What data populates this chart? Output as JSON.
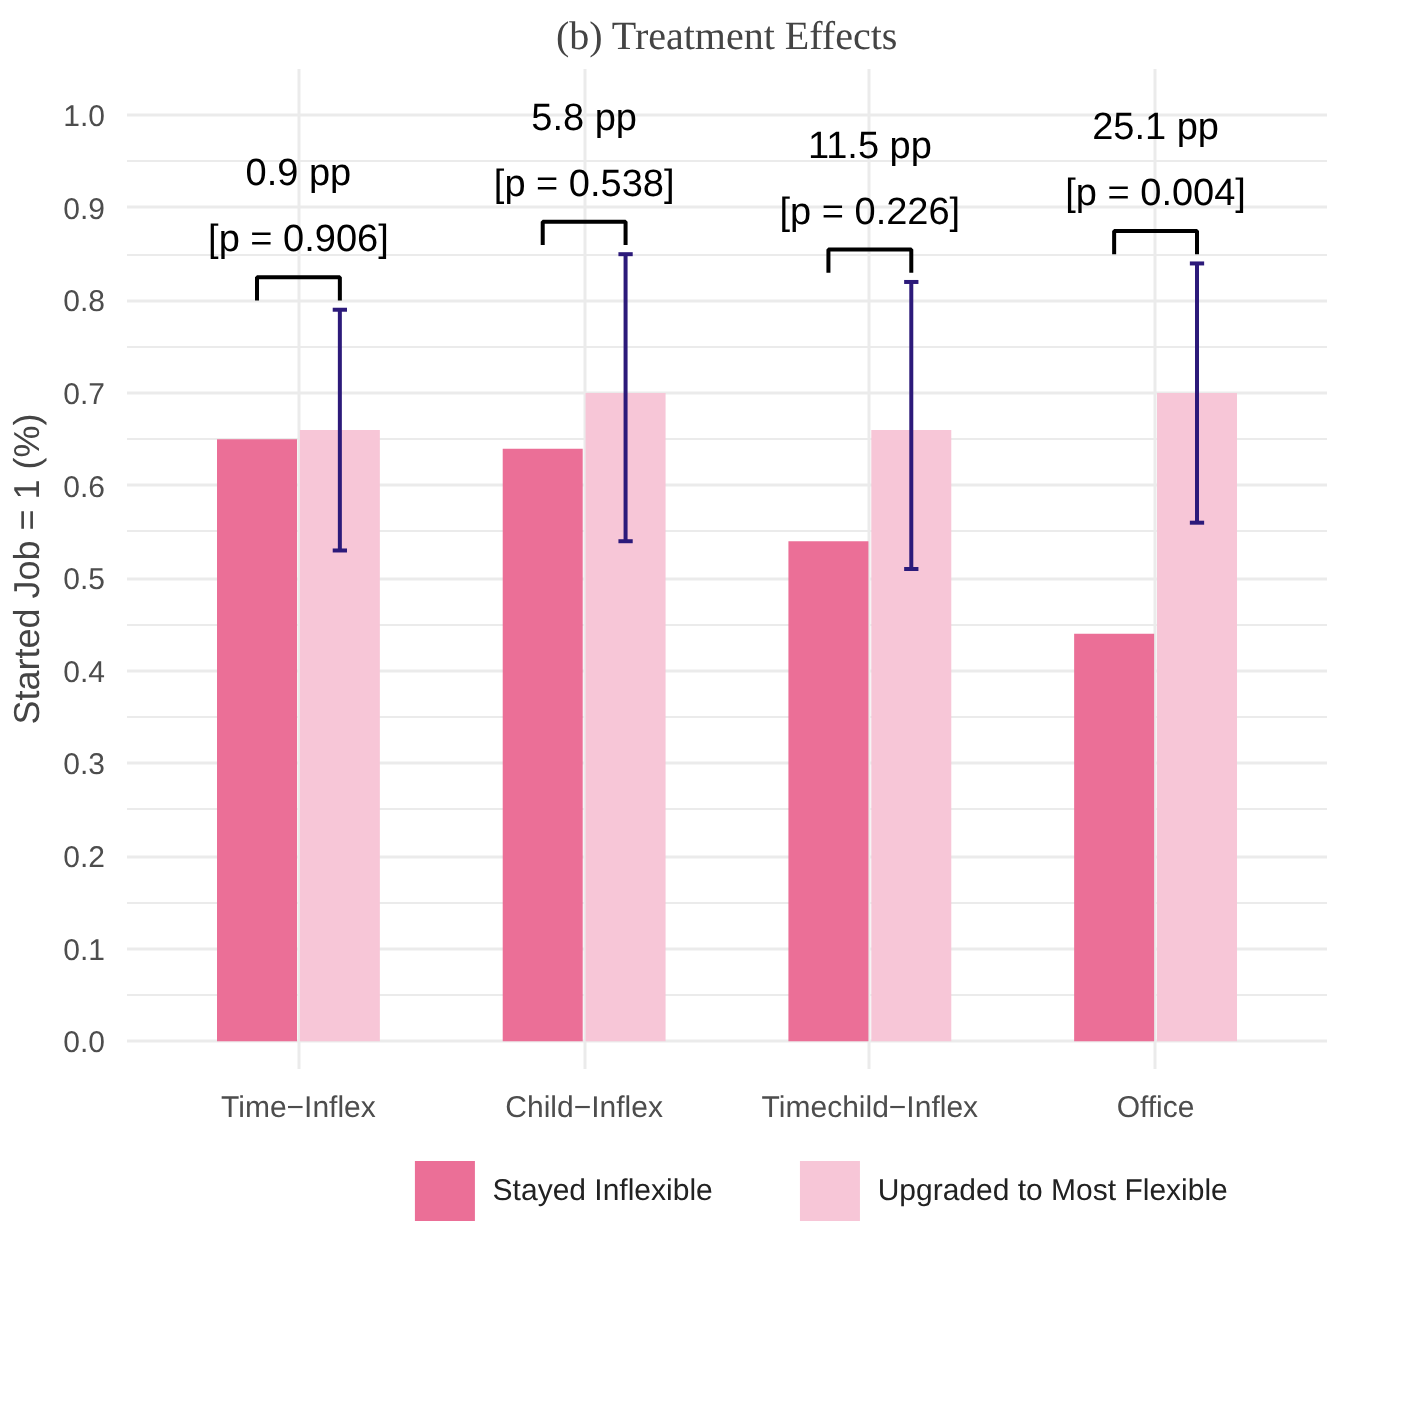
{
  "chart_data": {
    "type": "bar",
    "title": "(b) Treatment Effects",
    "ylabel": "Started Job = 1 (%)",
    "categories": [
      "Time−Inflex",
      "Child−Inflex",
      "Timechild−Inflex",
      "Office"
    ],
    "series": [
      {
        "name": "Stayed Inflexible",
        "color": "#eb6f97",
        "values": [
          0.65,
          0.64,
          0.54,
          0.44
        ]
      },
      {
        "name": "Upgraded to Most Flexible",
        "color": "#f7c6d7",
        "values": [
          0.66,
          0.7,
          0.66,
          0.7
        ],
        "errors": [
          [
            0.53,
            0.79
          ],
          [
            0.54,
            0.85
          ],
          [
            0.51,
            0.82
          ],
          [
            0.56,
            0.84
          ]
        ]
      }
    ],
    "ylim": [
      -0.03,
      1.05
    ],
    "yticks": [
      {
        "value": 0,
        "label": "0.0"
      },
      {
        "value": 0.1,
        "label": "0.1"
      },
      {
        "value": 0.2,
        "label": "0.2"
      },
      {
        "value": 0.3,
        "label": "0.3"
      },
      {
        "value": 0.4,
        "label": "0.4"
      },
      {
        "value": 0.5,
        "label": "0.5"
      },
      {
        "value": 0.6,
        "label": "0.6"
      },
      {
        "value": 0.7,
        "label": "0.7"
      },
      {
        "value": 0.8,
        "label": "0.8"
      },
      {
        "value": 0.9,
        "label": "0.9"
      },
      {
        "value": 1,
        "label": "1.0"
      }
    ],
    "annotations": [
      "0.9 pp",
      "[p = 0.906]",
      "5.8 pp",
      "[p = 0.538]",
      "11.5 pp",
      "[p = 0.226]",
      "25.1 pp",
      "[p = 0.004]"
    ],
    "grid": true,
    "legend": "bottom"
  }
}
